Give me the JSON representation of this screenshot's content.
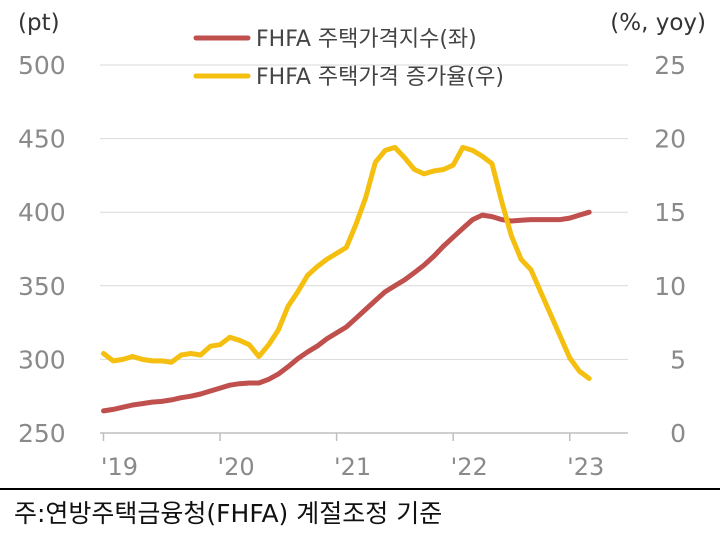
{
  "chart_data": {
    "type": "line",
    "left_axis_unit": "(pt)",
    "right_axis_unit": "(%, yoy)",
    "left_axis": {
      "ticks": [
        250,
        300,
        350,
        400,
        450,
        500
      ],
      "ylim": [
        250,
        500
      ]
    },
    "right_axis": {
      "ticks": [
        0,
        5,
        10,
        15,
        20,
        25
      ],
      "ylim": [
        0,
        25
      ]
    },
    "x_ticks": [
      {
        "label": "'19",
        "x": 2019.0
      },
      {
        "label": "'20",
        "x": 2020.0
      },
      {
        "label": "'21",
        "x": 2021.0
      },
      {
        "label": "'22",
        "x": 2022.0
      },
      {
        "label": "'23",
        "x": 2023.0
      }
    ],
    "xlim": [
      2018.97,
      2023.5
    ],
    "grid": "horizontal",
    "legend_placement": "top-center",
    "series": [
      {
        "name": "FHFA 주택가격지수(좌)",
        "axis": "left",
        "color": "#c0504d",
        "x": [
          2019.0,
          2019.083,
          2019.167,
          2019.25,
          2019.333,
          2019.417,
          2019.5,
          2019.583,
          2019.667,
          2019.75,
          2019.833,
          2019.917,
          2020.0,
          2020.083,
          2020.167,
          2020.25,
          2020.333,
          2020.417,
          2020.5,
          2020.583,
          2020.667,
          2020.75,
          2020.833,
          2020.917,
          2021.0,
          2021.083,
          2021.167,
          2021.25,
          2021.333,
          2021.417,
          2021.5,
          2021.583,
          2021.667,
          2021.75,
          2021.833,
          2021.917,
          2022.0,
          2022.083,
          2022.167,
          2022.25,
          2022.333,
          2022.417,
          2022.5,
          2022.583,
          2022.667,
          2022.75,
          2022.833,
          2022.917,
          2023.0,
          2023.083,
          2023.167
        ],
        "values": [
          265,
          266,
          267.5,
          269,
          270,
          271,
          271.5,
          272.5,
          274,
          275,
          276.5,
          278.5,
          280.5,
          282.5,
          283.5,
          284,
          284,
          286.5,
          290,
          295,
          300.5,
          305,
          309,
          314,
          318,
          322,
          328,
          334,
          340,
          346,
          350,
          354,
          359,
          364,
          370,
          377,
          383,
          389,
          395,
          398,
          397,
          395,
          394,
          394.5,
          395,
          395,
          395,
          395,
          396,
          398,
          400
        ]
      },
      {
        "name": "FHFA 주택가격 증가율(우)",
        "axis": "right",
        "color": "#f5bf10",
        "x": [
          2019.0,
          2019.083,
          2019.167,
          2019.25,
          2019.333,
          2019.417,
          2019.5,
          2019.583,
          2019.667,
          2019.75,
          2019.833,
          2019.917,
          2020.0,
          2020.083,
          2020.167,
          2020.25,
          2020.333,
          2020.417,
          2020.5,
          2020.583,
          2020.667,
          2020.75,
          2020.833,
          2020.917,
          2021.0,
          2021.083,
          2021.167,
          2021.25,
          2021.333,
          2021.417,
          2021.5,
          2021.583,
          2021.667,
          2021.75,
          2021.833,
          2021.917,
          2022.0,
          2022.083,
          2022.167,
          2022.25,
          2022.333,
          2022.417,
          2022.5,
          2022.583,
          2022.667,
          2022.75,
          2022.833,
          2022.917,
          2023.0,
          2023.083,
          2023.167
        ],
        "values": [
          5.4,
          4.9,
          5.0,
          5.2,
          5.0,
          4.9,
          4.9,
          4.8,
          5.3,
          5.4,
          5.3,
          5.9,
          6.0,
          6.5,
          6.3,
          6.0,
          5.2,
          6.0,
          7.0,
          8.6,
          9.6,
          10.7,
          11.3,
          11.8,
          12.2,
          12.6,
          14.2,
          16.0,
          18.4,
          19.2,
          19.4,
          18.7,
          17.9,
          17.6,
          17.8,
          17.9,
          18.2,
          19.4,
          19.2,
          18.8,
          18.3,
          15.7,
          13.4,
          11.8,
          11.1,
          9.6,
          8.1,
          6.6,
          5.1,
          4.2,
          3.7
        ]
      }
    ]
  },
  "footnote": "주:연방주택금융청(FHFA) 계절조정 기준"
}
